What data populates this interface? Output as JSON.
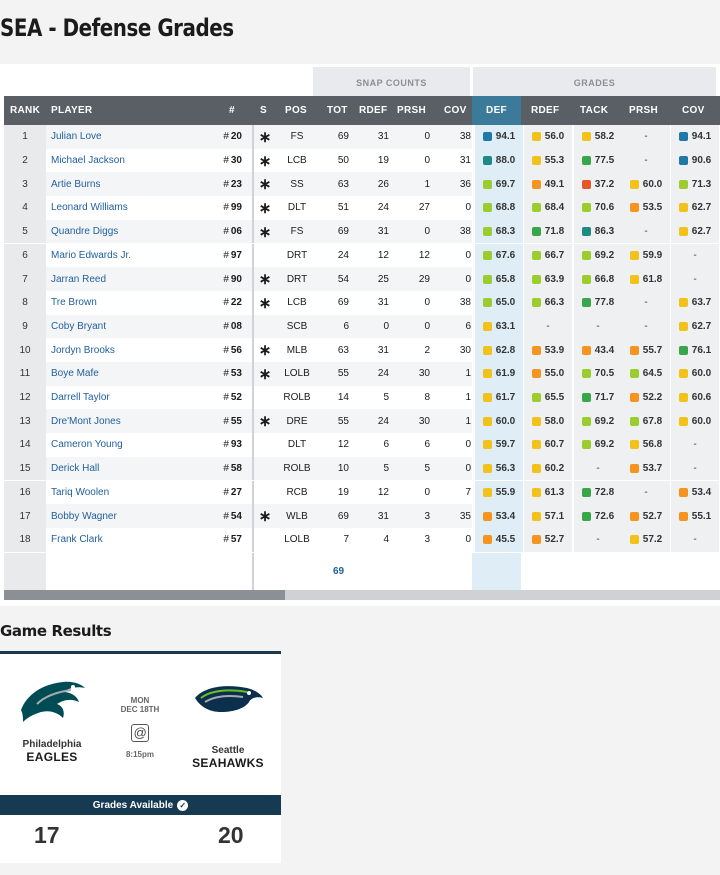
{
  "page_title": "SEA - Defense Grades",
  "group_headers": {
    "snap_counts": "SNAP COUNTS",
    "grades": "GRADES"
  },
  "columns": {
    "rank": "RANK",
    "player": "PLAYER",
    "jersey": "#",
    "s": "S",
    "pos": "POS",
    "tot": "TOT",
    "rdef": "RDEF",
    "prsh": "PRSH",
    "cov": "COV",
    "def": "DEF",
    "g_rdef": "RDEF",
    "tack": "TACK",
    "g_prsh": "PRSH",
    "g_cov": "COV"
  },
  "grade_colors": {
    "blue": "#1e79a8",
    "teal": "#1f8a84",
    "green": "#3aa64a",
    "lime": "#9ccc2d",
    "yellow": "#f2c21b",
    "orange": "#f5941e",
    "red": "#e4572a"
  },
  "rows": [
    {
      "rank": "1",
      "name": "Julian Love",
      "jersey": "20",
      "starter": true,
      "pos": "FS",
      "tot": "69",
      "rdef": "31",
      "prsh": "0",
      "cov": "38",
      "def": [
        "94.1",
        "blue"
      ],
      "g_rdef": [
        "56.0",
        "yellow"
      ],
      "tack": [
        "58.2",
        "yellow"
      ],
      "g_prsh": [
        "-",
        ""
      ],
      "g_cov": [
        "94.1",
        "blue"
      ]
    },
    {
      "rank": "2",
      "name": "Michael Jackson",
      "jersey": "30",
      "starter": true,
      "pos": "LCB",
      "tot": "50",
      "rdef": "19",
      "prsh": "0",
      "cov": "31",
      "def": [
        "88.0",
        "teal"
      ],
      "g_rdef": [
        "55.3",
        "yellow"
      ],
      "tack": [
        "77.5",
        "green"
      ],
      "g_prsh": [
        "-",
        ""
      ],
      "g_cov": [
        "90.6",
        "blue"
      ]
    },
    {
      "rank": "3",
      "name": "Artie Burns",
      "jersey": "23",
      "starter": true,
      "pos": "SS",
      "tot": "63",
      "rdef": "26",
      "prsh": "1",
      "cov": "36",
      "def": [
        "69.7",
        "lime"
      ],
      "g_rdef": [
        "49.1",
        "orange"
      ],
      "tack": [
        "37.2",
        "red"
      ],
      "g_prsh": [
        "60.0",
        "yellow"
      ],
      "g_cov": [
        "71.3",
        "lime"
      ]
    },
    {
      "rank": "4",
      "name": "Leonard Williams",
      "jersey": "99",
      "starter": true,
      "pos": "DLT",
      "tot": "51",
      "rdef": "24",
      "prsh": "27",
      "cov": "0",
      "def": [
        "68.8",
        "lime"
      ],
      "g_rdef": [
        "68.4",
        "lime"
      ],
      "tack": [
        "70.6",
        "lime"
      ],
      "g_prsh": [
        "53.5",
        "orange"
      ],
      "g_cov": [
        "62.7",
        "yellow"
      ]
    },
    {
      "rank": "5",
      "name": "Quandre Diggs",
      "jersey": "06",
      "starter": true,
      "pos": "FS",
      "tot": "69",
      "rdef": "31",
      "prsh": "0",
      "cov": "38",
      "def": [
        "68.3",
        "lime"
      ],
      "g_rdef": [
        "71.8",
        "green"
      ],
      "tack": [
        "86.3",
        "teal"
      ],
      "g_prsh": [
        "-",
        ""
      ],
      "g_cov": [
        "62.7",
        "yellow"
      ]
    },
    {
      "rank": "6",
      "name": "Mario Edwards Jr.",
      "jersey": "97",
      "starter": false,
      "pos": "DRT",
      "tot": "24",
      "rdef": "12",
      "prsh": "12",
      "cov": "0",
      "def": [
        "67.6",
        "lime"
      ],
      "g_rdef": [
        "66.7",
        "lime"
      ],
      "tack": [
        "69.2",
        "lime"
      ],
      "g_prsh": [
        "59.9",
        "yellow"
      ],
      "g_cov": [
        "-",
        ""
      ]
    },
    {
      "rank": "7",
      "name": "Jarran Reed",
      "jersey": "90",
      "starter": true,
      "pos": "DRT",
      "tot": "54",
      "rdef": "25",
      "prsh": "29",
      "cov": "0",
      "def": [
        "65.8",
        "lime"
      ],
      "g_rdef": [
        "63.9",
        "lime"
      ],
      "tack": [
        "66.8",
        "lime"
      ],
      "g_prsh": [
        "61.8",
        "yellow"
      ],
      "g_cov": [
        "-",
        ""
      ]
    },
    {
      "rank": "8",
      "name": "Tre Brown",
      "jersey": "22",
      "starter": true,
      "pos": "LCB",
      "tot": "69",
      "rdef": "31",
      "prsh": "0",
      "cov": "38",
      "def": [
        "65.0",
        "lime"
      ],
      "g_rdef": [
        "66.3",
        "lime"
      ],
      "tack": [
        "77.8",
        "green"
      ],
      "g_prsh": [
        "-",
        ""
      ],
      "g_cov": [
        "63.7",
        "yellow"
      ]
    },
    {
      "rank": "9",
      "name": "Coby Bryant",
      "jersey": "08",
      "starter": false,
      "pos": "SCB",
      "tot": "6",
      "rdef": "0",
      "prsh": "0",
      "cov": "6",
      "def": [
        "63.1",
        "yellow"
      ],
      "g_rdef": [
        "-",
        ""
      ],
      "tack": [
        "-",
        ""
      ],
      "g_prsh": [
        "-",
        ""
      ],
      "g_cov": [
        "62.7",
        "yellow"
      ]
    },
    {
      "rank": "10",
      "name": "Jordyn Brooks",
      "jersey": "56",
      "starter": true,
      "pos": "MLB",
      "tot": "63",
      "rdef": "31",
      "prsh": "2",
      "cov": "30",
      "def": [
        "62.8",
        "yellow"
      ],
      "g_rdef": [
        "53.9",
        "orange"
      ],
      "tack": [
        "43.4",
        "orange"
      ],
      "g_prsh": [
        "55.7",
        "orange"
      ],
      "g_cov": [
        "76.1",
        "green"
      ]
    },
    {
      "rank": "11",
      "name": "Boye Mafe",
      "jersey": "53",
      "starter": true,
      "pos": "LOLB",
      "tot": "55",
      "rdef": "24",
      "prsh": "30",
      "cov": "1",
      "def": [
        "61.9",
        "yellow"
      ],
      "g_rdef": [
        "55.0",
        "orange"
      ],
      "tack": [
        "70.5",
        "lime"
      ],
      "g_prsh": [
        "64.5",
        "lime"
      ],
      "g_cov": [
        "60.0",
        "yellow"
      ]
    },
    {
      "rank": "12",
      "name": "Darrell Taylor",
      "jersey": "52",
      "starter": false,
      "pos": "ROLB",
      "tot": "14",
      "rdef": "5",
      "prsh": "8",
      "cov": "1",
      "def": [
        "61.7",
        "yellow"
      ],
      "g_rdef": [
        "65.5",
        "lime"
      ],
      "tack": [
        "71.7",
        "green"
      ],
      "g_prsh": [
        "52.2",
        "orange"
      ],
      "g_cov": [
        "60.6",
        "yellow"
      ]
    },
    {
      "rank": "13",
      "name": "Dre'Mont Jones",
      "jersey": "55",
      "starter": true,
      "pos": "DRE",
      "tot": "55",
      "rdef": "24",
      "prsh": "30",
      "cov": "1",
      "def": [
        "60.0",
        "yellow"
      ],
      "g_rdef": [
        "58.0",
        "yellow"
      ],
      "tack": [
        "69.2",
        "lime"
      ],
      "g_prsh": [
        "67.8",
        "lime"
      ],
      "g_cov": [
        "60.0",
        "yellow"
      ]
    },
    {
      "rank": "14",
      "name": "Cameron Young",
      "jersey": "93",
      "starter": false,
      "pos": "DLT",
      "tot": "12",
      "rdef": "6",
      "prsh": "6",
      "cov": "0",
      "def": [
        "59.7",
        "yellow"
      ],
      "g_rdef": [
        "60.7",
        "yellow"
      ],
      "tack": [
        "69.2",
        "lime"
      ],
      "g_prsh": [
        "56.8",
        "yellow"
      ],
      "g_cov": [
        "-",
        ""
      ]
    },
    {
      "rank": "15",
      "name": "Derick Hall",
      "jersey": "58",
      "starter": false,
      "pos": "ROLB",
      "tot": "10",
      "rdef": "5",
      "prsh": "5",
      "cov": "0",
      "def": [
        "56.3",
        "yellow"
      ],
      "g_rdef": [
        "60.2",
        "yellow"
      ],
      "tack": [
        "-",
        ""
      ],
      "g_prsh": [
        "53.7",
        "orange"
      ],
      "g_cov": [
        "-",
        ""
      ]
    },
    {
      "rank": "16",
      "name": "Tariq Woolen",
      "jersey": "27",
      "starter": false,
      "pos": "RCB",
      "tot": "19",
      "rdef": "12",
      "prsh": "0",
      "cov": "7",
      "def": [
        "55.9",
        "yellow"
      ],
      "g_rdef": [
        "61.3",
        "yellow"
      ],
      "tack": [
        "72.8",
        "green"
      ],
      "g_prsh": [
        "-",
        ""
      ],
      "g_cov": [
        "53.4",
        "orange"
      ]
    },
    {
      "rank": "17",
      "name": "Bobby Wagner",
      "jersey": "54",
      "starter": true,
      "pos": "WLB",
      "tot": "69",
      "rdef": "31",
      "prsh": "3",
      "cov": "35",
      "def": [
        "53.4",
        "orange"
      ],
      "g_rdef": [
        "57.1",
        "yellow"
      ],
      "tack": [
        "72.6",
        "green"
      ],
      "g_prsh": [
        "52.7",
        "orange"
      ],
      "g_cov": [
        "55.1",
        "orange"
      ]
    },
    {
      "rank": "18",
      "name": "Frank Clark",
      "jersey": "57",
      "starter": false,
      "pos": "LOLB",
      "tot": "7",
      "rdef": "4",
      "prsh": "3",
      "cov": "0",
      "def": [
        "45.5",
        "orange"
      ],
      "g_rdef": [
        "52.7",
        "orange"
      ],
      "tack": [
        "-",
        ""
      ],
      "g_prsh": [
        "57.2",
        "yellow"
      ],
      "g_cov": [
        "-",
        ""
      ]
    }
  ],
  "footer_total": "69",
  "starter_symbol": "∗",
  "jersey_prefix": "#",
  "game_results_title": "Game Results",
  "game": {
    "away_city": "Philadelphia",
    "away_name": "EAGLES",
    "home_city": "Seattle",
    "home_name": "SEAHAWKS",
    "day": "MON",
    "date": "DEC 18TH",
    "at_symbol": "@",
    "time": "8:15pm",
    "grades_available": "Grades Available",
    "away_score": "17",
    "home_score": "20"
  }
}
